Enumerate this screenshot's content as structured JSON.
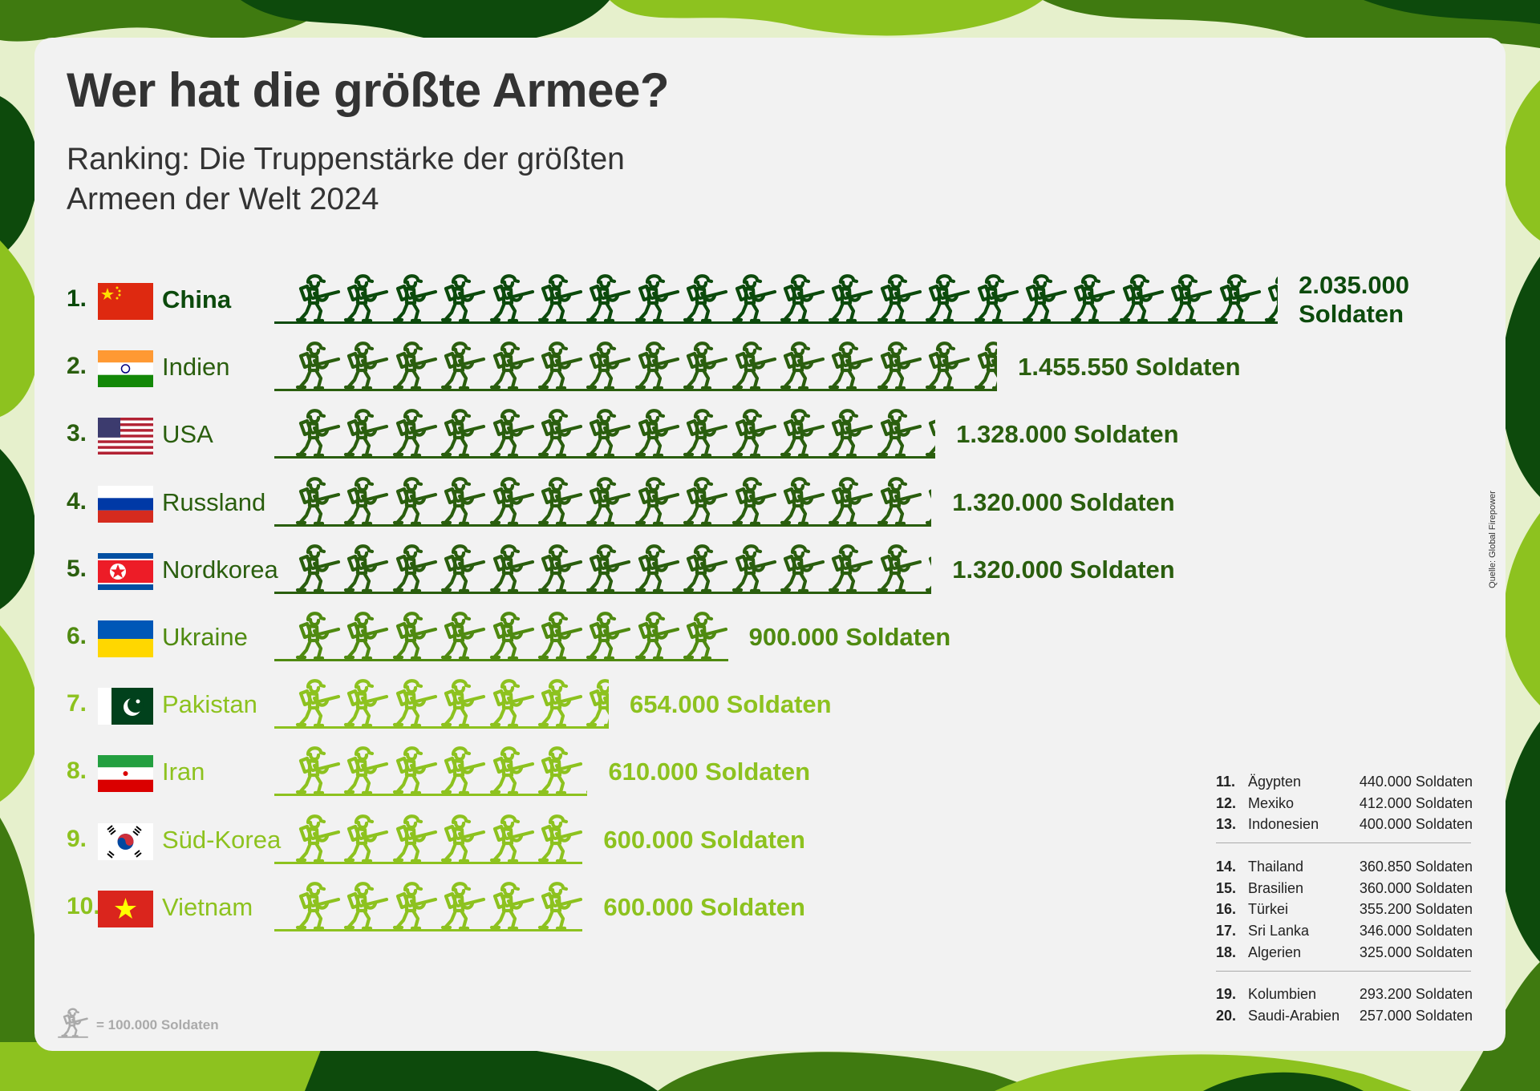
{
  "title": "Wer hat die größte Armee?",
  "subtitle": "Ranking: Die Truppenstärke der größten Armeen der Welt 2024",
  "source": "Quelle: Global Firepower",
  "legend": {
    "label": "= 100.000 Soldaten",
    "icon": "soldier-icon"
  },
  "colors": {
    "dark": "#0c4a0c",
    "mid": "#1f5a0c",
    "olive": "#4f8a10",
    "lime": "#8dc21f",
    "card": "#f2f2f2"
  },
  "chart_data": {
    "type": "bar",
    "unit": "Soldaten",
    "icon_unit": 100000,
    "categories": [
      "China",
      "Indien",
      "USA",
      "Russland",
      "Nordkorea",
      "Ukraine",
      "Pakistan",
      "Iran",
      "Süd-Korea",
      "Vietnam"
    ],
    "values": [
      2035000,
      1455550,
      1328000,
      1320000,
      1320000,
      900000,
      654000,
      610000,
      600000,
      600000
    ]
  },
  "rows": [
    {
      "rank": "1.",
      "country": "China",
      "value": 2035000,
      "label": "2.035.000 Soldaten",
      "color": "#0c4a0c",
      "flag": "cn"
    },
    {
      "rank": "2.",
      "country": "Indien",
      "value": 1455550,
      "label": "1.455.550 Soldaten",
      "color": "#2a5e0e",
      "flag": "in"
    },
    {
      "rank": "3.",
      "country": "USA",
      "value": 1328000,
      "label": "1.328.000 Soldaten",
      "color": "#2a5e0e",
      "flag": "us"
    },
    {
      "rank": "4.",
      "country": "Russland",
      "value": 1320000,
      "label": "1.320.000 Soldaten",
      "color": "#2a5e0e",
      "flag": "ru"
    },
    {
      "rank": "5.",
      "country": "Nordkorea",
      "value": 1320000,
      "label": "1.320.000 Soldaten",
      "color": "#2a5e0e",
      "flag": "kp"
    },
    {
      "rank": "6.",
      "country": "Ukraine",
      "value": 900000,
      "label": "900.000 Soldaten",
      "color": "#4f8a10",
      "flag": "ua"
    },
    {
      "rank": "7.",
      "country": "Pakistan",
      "value": 654000,
      "label": "654.000 Soldaten",
      "color": "#8dc21f",
      "flag": "pk"
    },
    {
      "rank": "8.",
      "country": "Iran",
      "value": 610000,
      "label": "610.000 Soldaten",
      "color": "#8dc21f",
      "flag": "ir"
    },
    {
      "rank": "9.",
      "country": "Süd-Korea",
      "value": 600000,
      "label": "600.000 Soldaten",
      "color": "#8dc21f",
      "flag": "kr"
    },
    {
      "rank": "10.",
      "country": "Vietnam",
      "value": 600000,
      "label": "600.000 Soldaten",
      "color": "#8dc21f",
      "flag": "vn"
    }
  ],
  "others": [
    [
      {
        "rank": "11.",
        "country": "Ägypten",
        "label": "440.000 Soldaten"
      },
      {
        "rank": "12.",
        "country": "Mexiko",
        "label": "412.000 Soldaten"
      },
      {
        "rank": "13.",
        "country": "Indonesien",
        "label": "400.000 Soldaten"
      }
    ],
    [
      {
        "rank": "14.",
        "country": "Thailand",
        "label": "360.850 Soldaten"
      },
      {
        "rank": "15.",
        "country": "Brasilien",
        "label": "360.000 Soldaten"
      },
      {
        "rank": "16.",
        "country": "Türkei",
        "label": "355.200 Soldaten"
      },
      {
        "rank": "17.",
        "country": "Sri Lanka",
        "label": "346.000 Soldaten"
      },
      {
        "rank": "18.",
        "country": "Algerien",
        "label": "325.000 Soldaten"
      }
    ],
    [
      {
        "rank": "19.",
        "country": "Kolumbien",
        "label": "293.200 Soldaten"
      },
      {
        "rank": "20.",
        "country": "Saudi-Arabien",
        "label": "257.000 Soldaten"
      }
    ]
  ]
}
